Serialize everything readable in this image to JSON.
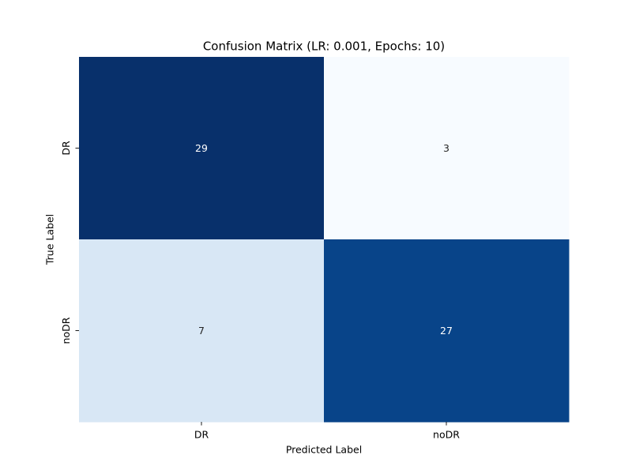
{
  "chart_data": {
    "type": "heatmap",
    "title": "Confusion Matrix (LR: 0.001, Epochs: 10)",
    "xlabel": "Predicted Label",
    "ylabel": "True Label",
    "x_categories": [
      "DR",
      "noDR"
    ],
    "y_categories": [
      "DR",
      "noDR"
    ],
    "values": [
      [
        29,
        3
      ],
      [
        7,
        27
      ]
    ],
    "colormap": "Blues",
    "color_range": [
      3,
      29
    ],
    "colorbar": false,
    "grid": false
  }
}
